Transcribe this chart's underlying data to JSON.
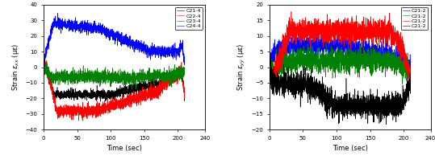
{
  "left_ylabel": "Strain εₓₓ (με)",
  "right_ylabel": "Strain εᵧᵧ (με)",
  "xlabel": "Time (sec)",
  "left_xlim": [
    0,
    240
  ],
  "right_xlim": [
    0,
    240
  ],
  "left_ylim": [
    -40,
    40
  ],
  "right_ylim": [
    -20,
    20
  ],
  "left_yticks": [
    -40,
    -30,
    -20,
    -10,
    0,
    10,
    20,
    30,
    40
  ],
  "right_yticks": [
    -20,
    -15,
    -10,
    -5,
    0,
    5,
    10,
    15,
    20
  ],
  "left_xticks": [
    0,
    50,
    100,
    150,
    200,
    240
  ],
  "right_xticks": [
    0,
    50,
    100,
    150,
    200,
    240
  ],
  "left_legend": [
    "C21-4",
    "C22-4",
    "C23-4",
    "C24-4"
  ],
  "right_legend": [
    "C21-2",
    "C21-2",
    "C21-2",
    "C21-2"
  ],
  "left_colors": [
    "black",
    "red",
    "green",
    "blue"
  ],
  "right_colors": [
    "blue",
    "green",
    "red",
    "black"
  ],
  "seed": 42,
  "n_points": 2100,
  "t_max": 210
}
